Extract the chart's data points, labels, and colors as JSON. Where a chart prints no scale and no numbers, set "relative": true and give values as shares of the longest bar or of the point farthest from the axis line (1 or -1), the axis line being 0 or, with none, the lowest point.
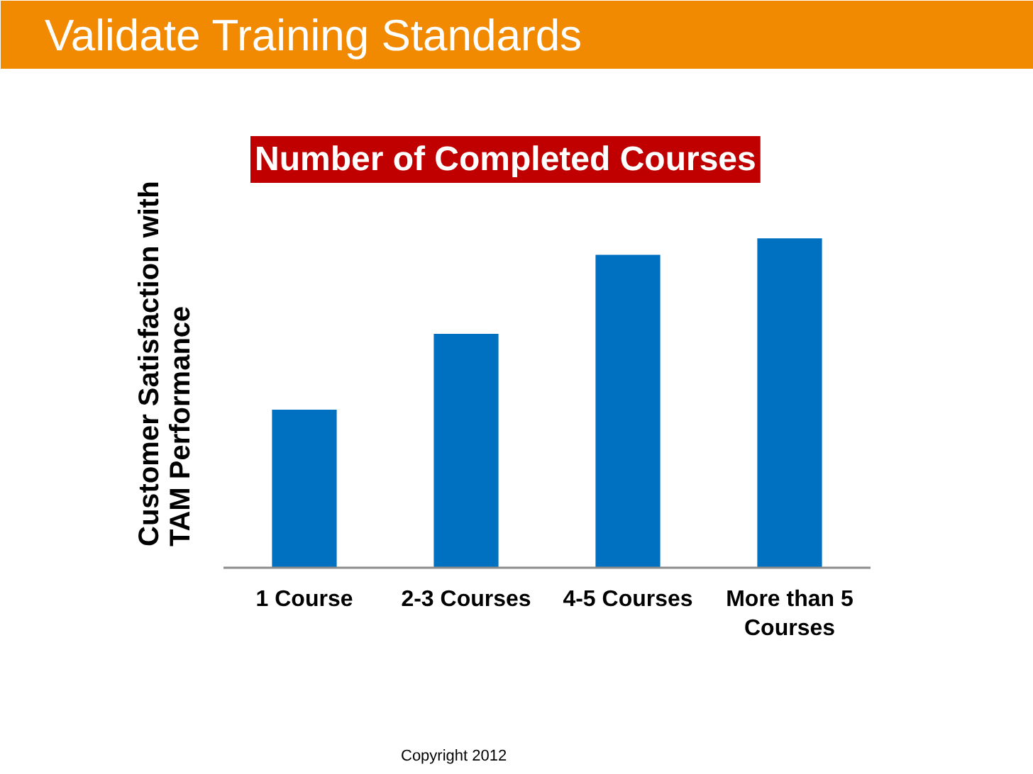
{
  "chart_data": {
    "type": "bar",
    "title": "Validate Training Standards",
    "subtitle": "Number of Completed Courses",
    "ylabel": "Customer Satisfaction with TAM Performance",
    "categories": [
      "1 Course",
      "2-3 Courses",
      "4-5 Courses",
      "More than 5 Courses"
    ],
    "values": [
      0.48,
      0.71,
      0.95,
      1.0
    ],
    "color": "#0070c0",
    "relative": true,
    "annotations": [
      "Copyright 2012"
    ]
  }
}
